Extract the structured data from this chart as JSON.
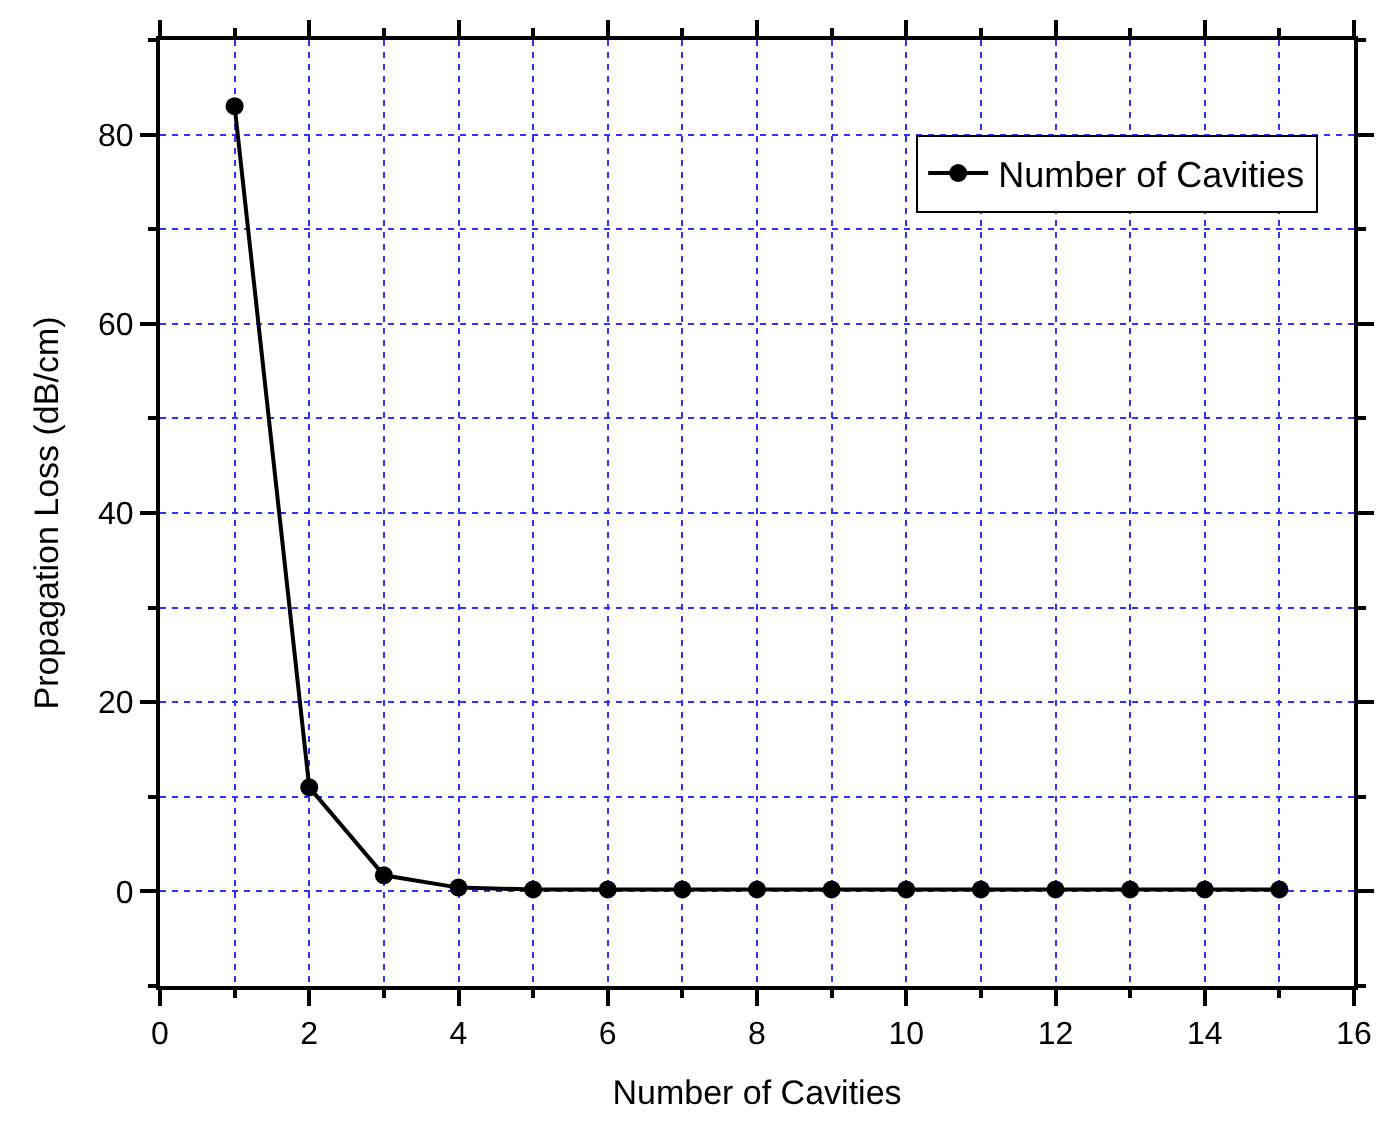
{
  "chart_data": {
    "type": "line",
    "xlabel": "Number of Cavities",
    "ylabel": "Propagation Loss (dB/cm)",
    "x": [
      1,
      2,
      3,
      4,
      5,
      6,
      7,
      8,
      9,
      10,
      11,
      12,
      13,
      14,
      15
    ],
    "series": [
      {
        "name": "Number of Cavities",
        "color": "#000000",
        "values": [
          83,
          11,
          1.7,
          0.4,
          0.2,
          0.2,
          0.2,
          0.2,
          0.2,
          0.2,
          0.2,
          0.2,
          0.2,
          0.2,
          0.2
        ]
      }
    ],
    "xlim": [
      0,
      16
    ],
    "xticks": [
      0,
      2,
      4,
      6,
      8,
      10,
      12,
      14,
      16
    ],
    "ylim": [
      -10,
      90
    ],
    "yticks": [
      0,
      20,
      40,
      60,
      80
    ],
    "grid": true,
    "legend": "top right",
    "marker": "circle",
    "line_style": "solid"
  }
}
